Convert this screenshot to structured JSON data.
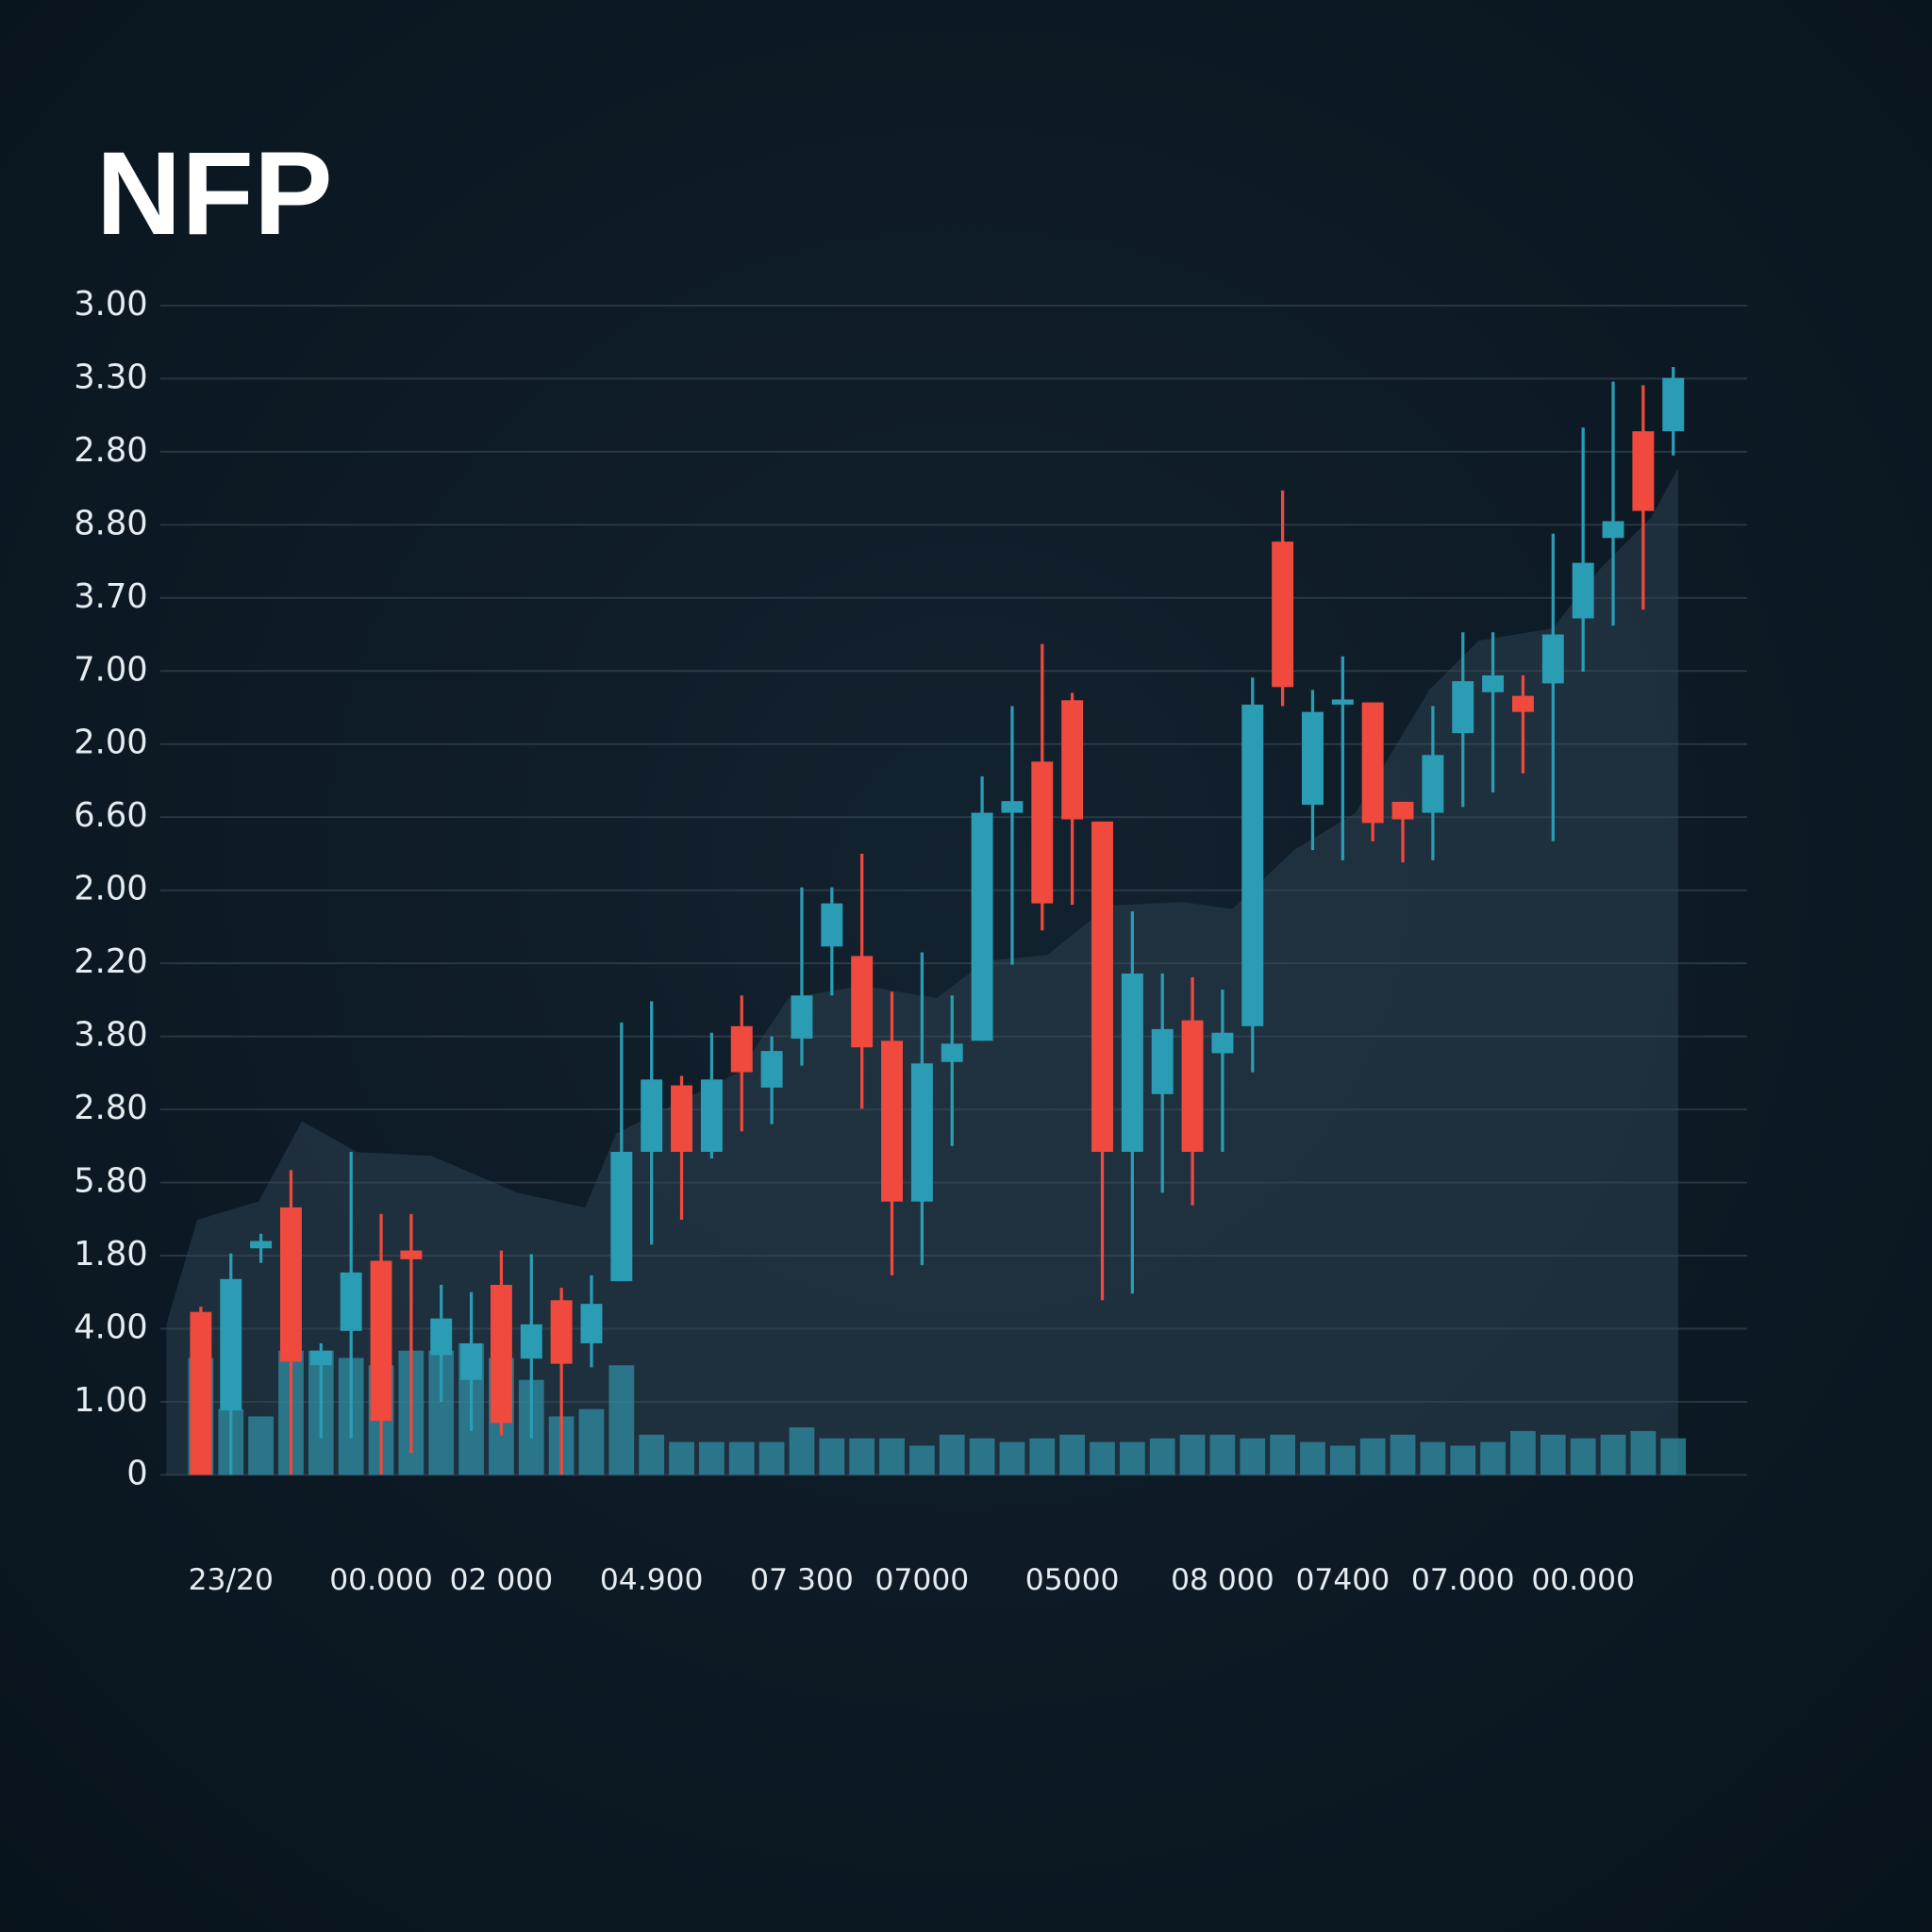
{
  "chart_data": {
    "type": "candlestick",
    "title": "NFP",
    "categories": [
      null,
      "23/20",
      null,
      null,
      null,
      null,
      "00.000",
      null,
      null,
      null,
      "02 000",
      null,
      null,
      null,
      null,
      "04.900",
      null,
      null,
      null,
      null,
      "07 300",
      null,
      null,
      null,
      "07000",
      null,
      null,
      null,
      null,
      "05000",
      null,
      null,
      null,
      null,
      "08 000",
      null,
      null,
      null,
      "07400",
      null,
      null,
      null,
      "07.000",
      null,
      null,
      null,
      "00.000",
      null,
      null,
      null
    ],
    "series": [
      {
        "up_color": "#2a9db5",
        "down_color": "#f0493e",
        "open": [
          2.23,
          0.88,
          3.1,
          3.66,
          1.5,
          1.97,
          2.93,
          3.07,
          1.64,
          1.3,
          2.6,
          1.59,
          2.39,
          1.8,
          2.65,
          4.42,
          5.33,
          4.42,
          6.14,
          5.3,
          5.97,
          7.23,
          7.1,
          5.94,
          3.74,
          5.65,
          5.94,
          9.06,
          9.76,
          10.6,
          8.94,
          4.42,
          5.21,
          6.22,
          5.77,
          6.14,
          12.77,
          9.17,
          10.54,
          10.57,
          9.21,
          9.06,
          10.15,
          10.71,
          10.66,
          10.83,
          11.72,
          12.82,
          14.28,
          14.28
        ],
        "high": [
          2.3,
          3.03,
          3.3,
          4.17,
          1.8,
          4.42,
          3.57,
          3.57,
          2.6,
          2.5,
          3.07,
          3.02,
          2.56,
          2.73,
          6.19,
          6.48,
          5.46,
          6.05,
          6.56,
          6.0,
          8.04,
          8.04,
          8.5,
          6.61,
          7.15,
          6.56,
          9.56,
          10.52,
          11.37,
          10.7,
          8.94,
          7.71,
          6.86,
          6.81,
          6.64,
          10.91,
          13.47,
          10.74,
          11.2,
          10.57,
          9.21,
          10.52,
          11.53,
          11.53,
          10.94,
          12.88,
          14.33,
          14.96,
          14.91,
          15.16
        ],
        "low": [
          0,
          0,
          2.9,
          0,
          0.5,
          0.5,
          0,
          0.3,
          1.0,
          0.6,
          0.54,
          0.5,
          0,
          1.47,
          2.65,
          3.15,
          3.49,
          4.33,
          4.7,
          4.8,
          5.6,
          6.56,
          5.01,
          2.73,
          2.87,
          4.5,
          5.94,
          6.98,
          7.45,
          7.8,
          2.39,
          2.48,
          3.86,
          3.69,
          4.42,
          5.51,
          10.52,
          8.55,
          8.41,
          8.67,
          8.38,
          8.41,
          9.14,
          9.34,
          9.6,
          8.67,
          10.99,
          11.62,
          11.84,
          13.95
        ],
        "close": [
          0,
          2.68,
          3.2,
          1.55,
          1.7,
          2.77,
          0.74,
          2.95,
          2.14,
          1.8,
          0.71,
          2.06,
          1.52,
          2.34,
          4.42,
          5.41,
          4.42,
          5.41,
          5.51,
          5.8,
          6.56,
          7.82,
          5.85,
          3.74,
          5.63,
          5.9,
          9.06,
          9.22,
          7.82,
          8.97,
          4.42,
          6.86,
          6.1,
          4.42,
          6.05,
          10.54,
          10.78,
          10.44,
          10.61,
          8.92,
          8.97,
          9.85,
          10.86,
          10.94,
          10.44,
          11.5,
          12.48,
          13.05,
          13.19,
          15.01
        ],
        "volume": [
          1.6,
          0.9,
          0.8,
          1.7,
          1.7,
          1.6,
          1.5,
          1.7,
          1.7,
          1.8,
          1.6,
          1.3,
          0.8,
          0.9,
          1.5,
          0.55,
          0.45,
          0.45,
          0.45,
          0.45,
          0.65,
          0.5,
          0.5,
          0.5,
          0.4,
          0.55,
          0.5,
          0.45,
          0.5,
          0.55,
          0.45,
          0.45,
          0.5,
          0.55,
          0.55,
          0.5,
          0.55,
          0.45,
          0.4,
          0.5,
          0.55,
          0.45,
          0.4,
          0.45,
          0.6,
          0.55,
          0.5,
          0.55,
          0.6,
          0.5
        ],
        "volume_color": "#2f8ea3"
      }
    ],
    "ylim": [
      0,
      16
    ],
    "yticks": [
      0,
      {
        "value": 1,
        "label": "1.00"
      },
      {
        "value": 2,
        "label": "4.00"
      },
      {
        "value": 3,
        "label": "1.80"
      },
      {
        "value": 4,
        "label": "5.80"
      },
      {
        "value": 5,
        "label": "2.80"
      },
      {
        "value": 6,
        "label": "3.80"
      },
      {
        "value": 7,
        "label": "2.20"
      },
      {
        "value": 8,
        "label": "2.00"
      },
      {
        "value": 9,
        "label": "6.60"
      },
      {
        "value": 10,
        "label": "2.00"
      },
      {
        "value": 11,
        "label": "7.00"
      },
      {
        "value": 12,
        "label": "3.70"
      },
      {
        "value": 13,
        "label": "8.80"
      },
      {
        "value": 14,
        "label": "2.80"
      },
      {
        "value": 15,
        "label": "3.30"
      },
      {
        "value": 16,
        "label": "3.00"
      }
    ],
    "grid": true
  }
}
